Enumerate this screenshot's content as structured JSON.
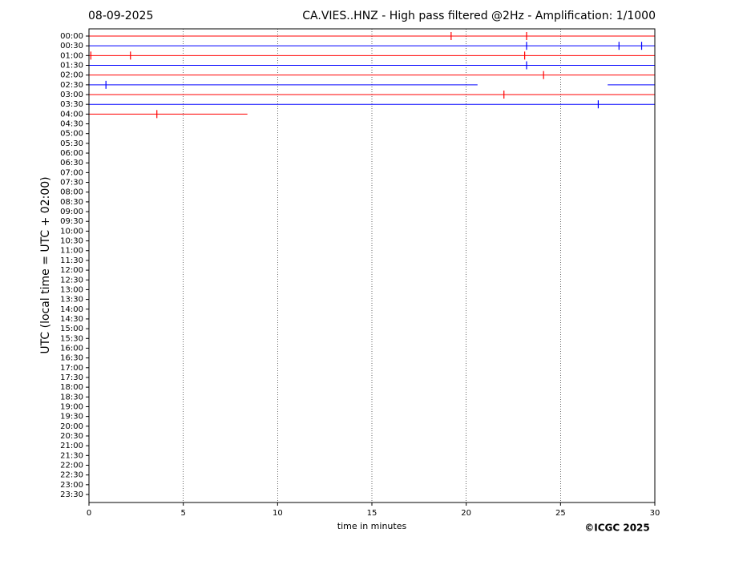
{
  "chart_data": {
    "type": "helicorder",
    "date": "08-09-2025",
    "title": "CA.VIES..HNZ - High pass filtered @2Hz - Amplification: 1/1000",
    "ylabel": "UTC (local time = UTC + 02:00)",
    "xlabel": "time in minutes",
    "copyright": "©ICGC 2025",
    "xlim": [
      0,
      30
    ],
    "xticks": [
      0,
      5,
      10,
      15,
      20,
      25,
      30
    ],
    "grid": true,
    "categories": [
      "00:00",
      "00:30",
      "01:00",
      "01:30",
      "02:00",
      "02:30",
      "03:00",
      "03:30",
      "04:00",
      "04:30",
      "05:00",
      "05:30",
      "06:00",
      "06:30",
      "07:00",
      "07:30",
      "08:00",
      "08:30",
      "09:00",
      "09:30",
      "10:00",
      "10:30",
      "11:00",
      "11:30",
      "12:00",
      "12:30",
      "13:00",
      "13:30",
      "14:00",
      "14:30",
      "15:00",
      "15:30",
      "16:00",
      "16:30",
      "17:00",
      "17:30",
      "18:00",
      "18:30",
      "19:00",
      "19:30",
      "20:00",
      "20:30",
      "21:00",
      "21:30",
      "22:00",
      "22:30",
      "23:00",
      "23:30"
    ],
    "traces": [
      {
        "color": "#ff0000",
        "segments": [
          [
            0,
            30
          ]
        ],
        "spikes": [
          19.2,
          23.2
        ]
      },
      {
        "color": "#0000ff",
        "segments": [
          [
            0,
            30
          ]
        ],
        "spikes": [
          23.2,
          28.1,
          29.3
        ]
      },
      {
        "color": "#ff0000",
        "segments": [
          [
            0,
            30
          ]
        ],
        "spikes": [
          0.1,
          2.2,
          23.1
        ]
      },
      {
        "color": "#0000ff",
        "segments": [
          [
            0,
            30
          ]
        ],
        "spikes": [
          23.2
        ]
      },
      {
        "color": "#ff0000",
        "segments": [
          [
            0,
            30
          ]
        ],
        "spikes": [
          24.1
        ]
      },
      {
        "color": "#0000ff",
        "segments": [
          [
            0,
            20.6
          ],
          [
            27.5,
            30
          ]
        ],
        "spikes": [
          0.9
        ]
      },
      {
        "color": "#ff0000",
        "segments": [
          [
            0,
            30
          ]
        ],
        "spikes": [
          22.0
        ]
      },
      {
        "color": "#0000ff",
        "segments": [
          [
            0,
            30
          ]
        ],
        "spikes": [
          27.0
        ]
      },
      {
        "color": "#ff0000",
        "segments": [
          [
            0,
            8.4
          ]
        ],
        "spikes": [
          3.6
        ]
      }
    ]
  }
}
